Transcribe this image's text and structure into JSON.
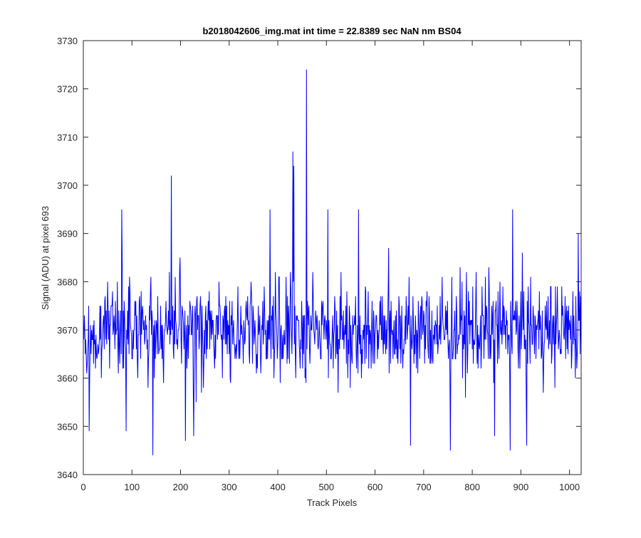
{
  "chart_data": {
    "type": "line",
    "title": "b2018042606_img.mat int time = 22.8389 sec  NaN nm BS04",
    "xlabel": "Track Pixels",
    "ylabel": "Signal (ADU) at pixel 693",
    "xlim": [
      0,
      1024
    ],
    "ylim": [
      3640,
      3730
    ],
    "xticks": [
      0,
      100,
      200,
      300,
      400,
      500,
      600,
      700,
      800,
      900,
      1000
    ],
    "yticks": [
      3640,
      3650,
      3660,
      3670,
      3680,
      3690,
      3700,
      3710,
      3720,
      3730
    ],
    "grid": false,
    "legend": "none",
    "series_color": "#0000ff",
    "series": [
      {
        "name": "",
        "mean": 3670,
        "n_points": 1024,
        "x_start": 1,
        "x_step": 1,
        "peaks": [
          {
            "x": 459,
            "y": 3724
          },
          {
            "x": 431,
            "y": 3707
          },
          {
            "x": 181,
            "y": 3702
          },
          {
            "x": 433,
            "y": 3704
          },
          {
            "x": 79,
            "y": 3695
          },
          {
            "x": 384,
            "y": 3695
          },
          {
            "x": 503,
            "y": 3695
          },
          {
            "x": 566,
            "y": 3695
          },
          {
            "x": 883,
            "y": 3695
          },
          {
            "x": 1018,
            "y": 3690
          }
        ],
        "troughs": [
          {
            "x": 143,
            "y": 3644
          },
          {
            "x": 755,
            "y": 3645
          },
          {
            "x": 878,
            "y": 3645
          },
          {
            "x": 12,
            "y": 3649
          },
          {
            "x": 88,
            "y": 3649
          },
          {
            "x": 210,
            "y": 3647
          },
          {
            "x": 227,
            "y": 3648
          },
          {
            "x": 673,
            "y": 3646
          },
          {
            "x": 846,
            "y": 3648
          },
          {
            "x": 912,
            "y": 3646
          }
        ]
      }
    ]
  }
}
